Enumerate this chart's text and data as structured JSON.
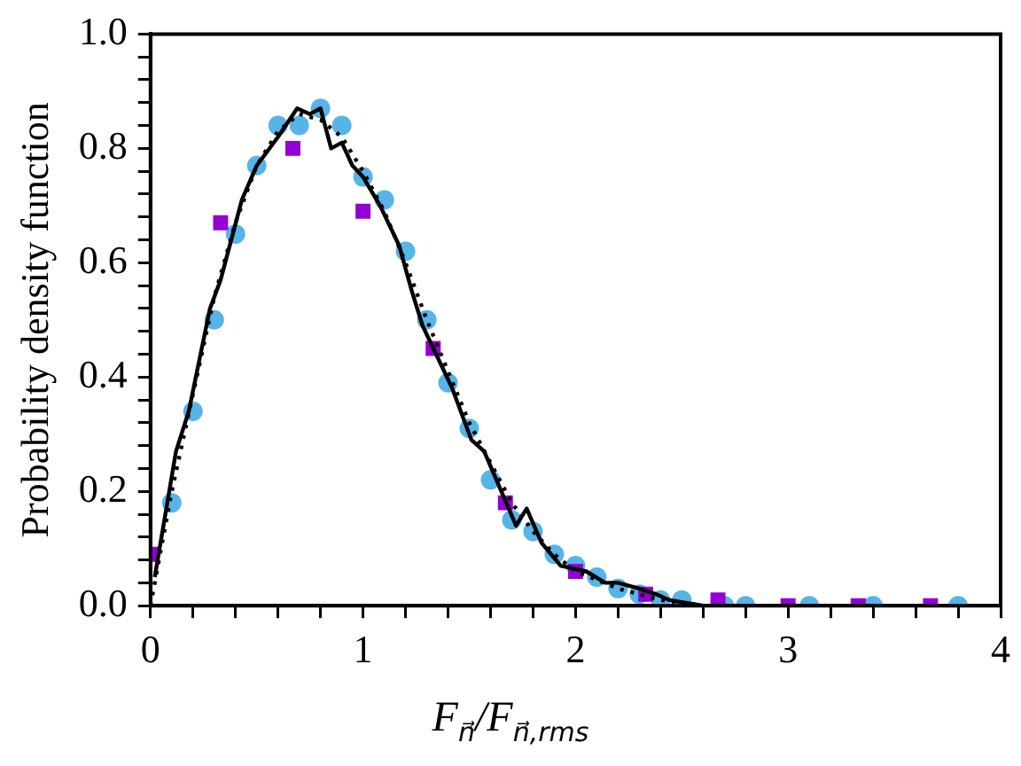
{
  "chart_data": {
    "type": "scatter",
    "xlabel": "F$_{n⃗}$/F$_{n⃗,rms}$",
    "ylabel": "Probability density function",
    "xlim": [
      0,
      4
    ],
    "ylim": [
      0,
      1
    ],
    "xticks": [
      0,
      {
        "value": 0.2,
        "label": null
      },
      {
        "value": 0.4,
        "label": null
      },
      {
        "value": 0.6,
        "label": null
      },
      {
        "value": 0.8,
        "label": null
      },
      1,
      {
        "value": 1.2,
        "label": null
      },
      {
        "value": 1.4,
        "label": null
      },
      {
        "value": 1.6,
        "label": null
      },
      {
        "value": 1.8,
        "label": null
      },
      2,
      {
        "value": 2.2,
        "label": null
      },
      {
        "value": 2.4,
        "label": null
      },
      {
        "value": 2.6,
        "label": null
      },
      {
        "value": 2.8,
        "label": null
      },
      3,
      {
        "value": 3.2,
        "label": null
      },
      {
        "value": 3.4,
        "label": null
      },
      {
        "value": 3.6,
        "label": null
      },
      {
        "value": 3.8,
        "label": null
      },
      4
    ],
    "yticks": [
      {
        "value": 0,
        "label": "0.0"
      },
      {
        "value": 0.04,
        "label": null
      },
      {
        "value": 0.08,
        "label": null
      },
      {
        "value": 0.12,
        "label": null
      },
      {
        "value": 0.16,
        "label": null
      },
      {
        "value": 0.2,
        "label": "0.2"
      },
      {
        "value": 0.24,
        "label": null
      },
      {
        "value": 0.28,
        "label": null
      },
      {
        "value": 0.32,
        "label": null
      },
      {
        "value": 0.36,
        "label": null
      },
      {
        "value": 0.4,
        "label": "0.4"
      },
      {
        "value": 0.44,
        "label": null
      },
      {
        "value": 0.48,
        "label": null
      },
      {
        "value": 0.52,
        "label": null
      },
      {
        "value": 0.56,
        "label": null
      },
      {
        "value": 0.6,
        "label": "0.6"
      },
      {
        "value": 0.64,
        "label": null
      },
      {
        "value": 0.68,
        "label": null
      },
      {
        "value": 0.72,
        "label": null
      },
      {
        "value": 0.76,
        "label": null
      },
      {
        "value": 0.8,
        "label": "0.8"
      },
      {
        "value": 0.84,
        "label": null
      },
      {
        "value": 0.88,
        "label": null
      },
      {
        "value": 0.92,
        "label": null
      },
      {
        "value": 0.96,
        "label": null
      },
      {
        "value": 1,
        "label": "1.0"
      }
    ],
    "grid": false,
    "legend": false,
    "series": [
      {
        "type": "scatter",
        "marker": "circle",
        "color": "#56b4e9",
        "x": [
          0.1,
          0.2,
          0.3,
          0.4,
          0.5,
          0.6,
          0.7,
          0.8,
          0.9,
          1.0,
          1.1,
          1.2,
          1.3,
          1.4,
          1.5,
          1.6,
          1.7,
          1.8,
          1.9,
          2.0,
          2.1,
          2.2,
          2.3,
          2.4,
          2.5,
          2.7,
          2.8,
          3.1,
          3.4,
          3.8
        ],
        "values": [
          0.18,
          0.34,
          0.5,
          0.65,
          0.77,
          0.84,
          0.84,
          0.87,
          0.84,
          0.75,
          0.71,
          0.62,
          0.5,
          0.39,
          0.31,
          0.22,
          0.15,
          0.13,
          0.09,
          0.07,
          0.05,
          0.03,
          0.02,
          0.01,
          0.01,
          0,
          0,
          0,
          0,
          0
        ]
      },
      {
        "type": "scatter",
        "marker": "square",
        "color": "#9400d3",
        "x": [
          0,
          0.33,
          0.67,
          1.0,
          1.33,
          1.67,
          2.0,
          2.33,
          2.67,
          3.0,
          3.33,
          3.67
        ],
        "values": [
          0.09,
          0.67,
          0.8,
          0.69,
          0.45,
          0.18,
          0.06,
          0.02,
          0.01,
          0,
          0,
          0
        ]
      },
      {
        "type": "line",
        "marker": "none",
        "line_style": "solid",
        "color": "#000000",
        "x": [
          0.02,
          0.12,
          0.18,
          0.28,
          0.33,
          0.43,
          0.5,
          0.6,
          0.69,
          0.75,
          0.8,
          0.85,
          0.9,
          0.95,
          1.0,
          1.08,
          1.17,
          1.23,
          1.28,
          1.42,
          1.51,
          1.57,
          1.72,
          1.77,
          1.84,
          1.93,
          2.05,
          2.14,
          2.2,
          2.3,
          2.38,
          2.44,
          2.6,
          3.0,
          3.4
        ],
        "values": [
          0.05,
          0.27,
          0.34,
          0.52,
          0.57,
          0.71,
          0.77,
          0.82,
          0.87,
          0.86,
          0.87,
          0.8,
          0.81,
          0.77,
          0.75,
          0.7,
          0.63,
          0.55,
          0.49,
          0.38,
          0.29,
          0.27,
          0.14,
          0.17,
          0.11,
          0.07,
          0.06,
          0.04,
          0.04,
          0.03,
          0.02,
          0.01,
          0,
          0,
          0
        ]
      },
      {
        "type": "line",
        "marker": "none",
        "line_style": "dotted",
        "color": "#000000",
        "x": [
          0,
          0.1,
          0.2,
          0.3,
          0.4,
          0.5,
          0.6,
          0.7,
          0.8,
          0.9,
          1.0,
          1.1,
          1.2,
          1.3,
          1.4,
          1.5,
          1.6,
          1.7,
          1.8,
          1.9,
          2.0,
          2.2,
          2.4,
          2.6,
          3.0
        ],
        "values": [
          0,
          0.2,
          0.37,
          0.54,
          0.67,
          0.77,
          0.83,
          0.86,
          0.85,
          0.82,
          0.76,
          0.69,
          0.6,
          0.5,
          0.41,
          0.32,
          0.25,
          0.18,
          0.13,
          0.09,
          0.06,
          0.03,
          0.01,
          0,
          0
        ]
      }
    ]
  }
}
